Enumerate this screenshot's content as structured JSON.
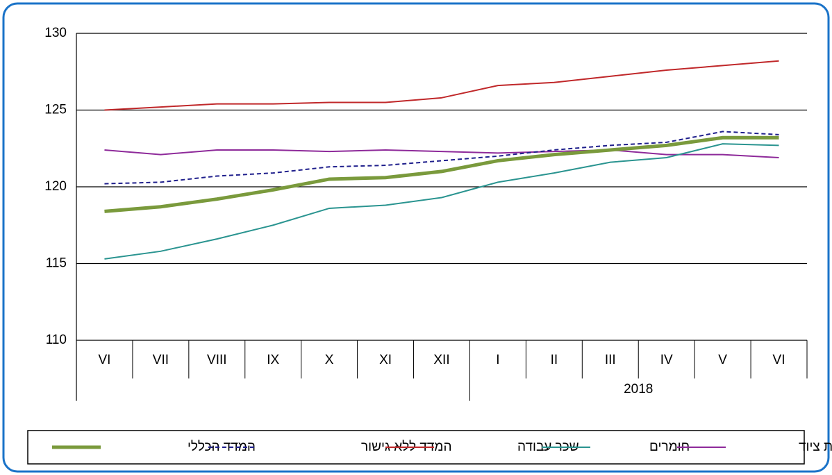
{
  "chart_data": {
    "type": "line",
    "categories": [
      "VI",
      "VII",
      "VIII",
      "IX",
      "X",
      "XI",
      "XII",
      "I",
      "II",
      "III",
      "IV",
      "V",
      "VI"
    ],
    "x_group_label": "2018",
    "ylim": [
      110,
      130
    ],
    "yticks": [
      110,
      115,
      120,
      125,
      130
    ],
    "grid": true,
    "series": [
      {
        "name": "המדד הכללי",
        "color": "#7a9a3c",
        "thick": true,
        "values": [
          118.4,
          118.7,
          119.2,
          119.8,
          120.5,
          120.6,
          121.0,
          121.7,
          122.1,
          122.4,
          122.7,
          123.2,
          123.2
        ]
      },
      {
        "name": "המדד ללא גישור",
        "color": "#1f1f8c",
        "dashed": true,
        "values": [
          120.2,
          120.3,
          120.7,
          120.9,
          121.3,
          121.4,
          121.7,
          122.0,
          122.4,
          122.7,
          122.9,
          123.6,
          123.4
        ]
      },
      {
        "name": "שכר עבודה",
        "color": "#c0282a",
        "values": [
          125.0,
          125.2,
          125.4,
          125.4,
          125.5,
          125.5,
          125.8,
          126.6,
          126.8,
          127.2,
          127.6,
          127.9,
          128.2
        ]
      },
      {
        "name": "חומרים",
        "color": "#2a9490",
        "values": [
          115.3,
          115.8,
          116.6,
          117.5,
          118.6,
          118.8,
          119.3,
          120.3,
          120.9,
          121.6,
          121.9,
          122.8,
          122.7
        ]
      },
      {
        "name": "שכירת ציוד",
        "color": "#8e2a9a",
        "values": [
          122.4,
          122.1,
          122.4,
          122.4,
          122.3,
          122.4,
          122.3,
          122.2,
          122.3,
          122.4,
          122.1,
          122.1,
          121.9
        ]
      }
    ]
  }
}
